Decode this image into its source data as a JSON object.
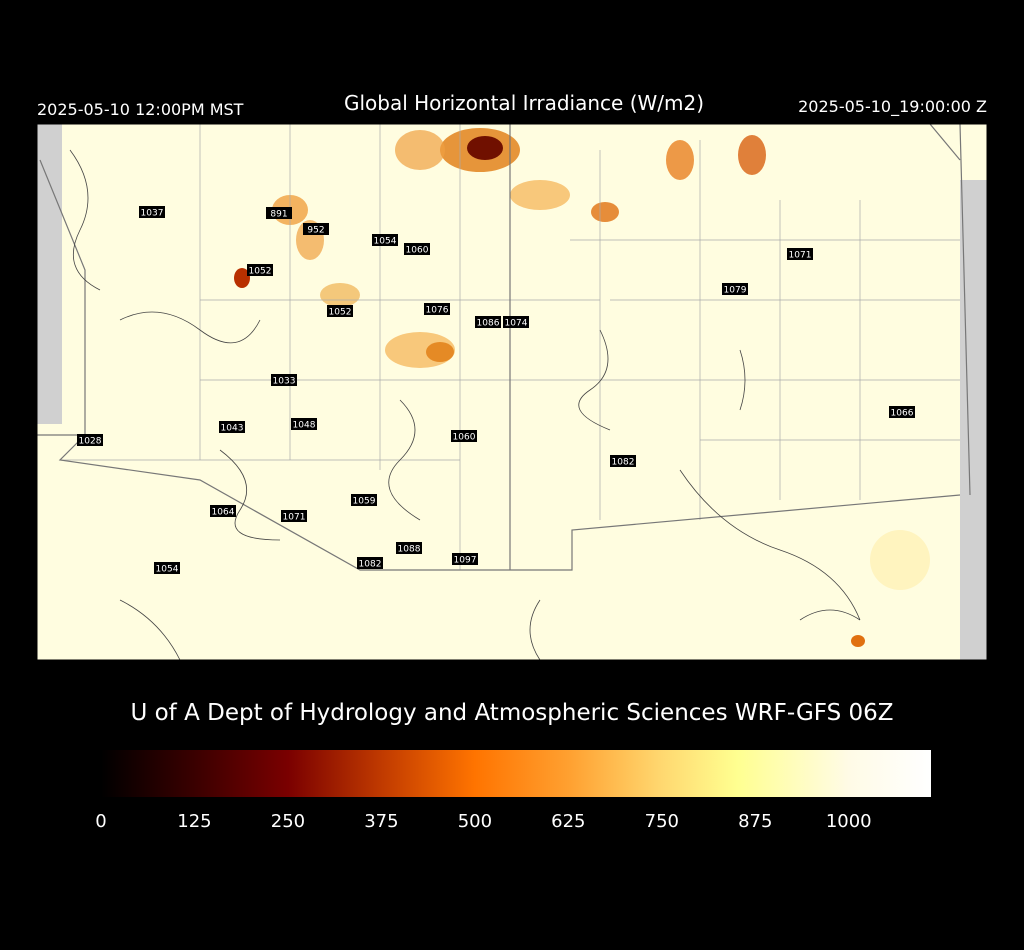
{
  "header": {
    "local_time": "2025-05-10 12:00PM MST",
    "title": "Global Horizontal Irradiance (W/m2)",
    "valid_time": "2025-05-10_19:00:00 Z"
  },
  "map": {
    "station_values": [
      "1037",
      "891",
      "952",
      "1054",
      "1060",
      "1052",
      "1071",
      "1079",
      "1052",
      "1076",
      "1086",
      "1074",
      "1033",
      "1066",
      "1043",
      "1048",
      "1060",
      "1028",
      "1082",
      "1059",
      "1064",
      "1071",
      "1088",
      "1082",
      "1097",
      "1054"
    ]
  },
  "footer": {
    "credit": "U of A Dept of Hydrology and Atmospheric Sciences WRF-GFS 06Z"
  },
  "colorbar": {
    "lim": [
      0,
      1110
    ],
    "ticks": [
      0,
      125,
      250,
      375,
      500,
      625,
      750,
      875,
      1000
    ],
    "color_stops": [
      {
        "value": 0,
        "color": "#000000"
      },
      {
        "value": 125,
        "color": "#3a0000"
      },
      {
        "value": 250,
        "color": "#7a0000"
      },
      {
        "value": 375,
        "color": "#c03a00"
      },
      {
        "value": 500,
        "color": "#ff7400"
      },
      {
        "value": 625,
        "color": "#ffa030"
      },
      {
        "value": 750,
        "color": "#ffd870"
      },
      {
        "value": 850,
        "color": "#ffff90"
      },
      {
        "value": 1000,
        "color": "#fffbe6"
      },
      {
        "value": 1110,
        "color": "#ffffff"
      }
    ]
  }
}
